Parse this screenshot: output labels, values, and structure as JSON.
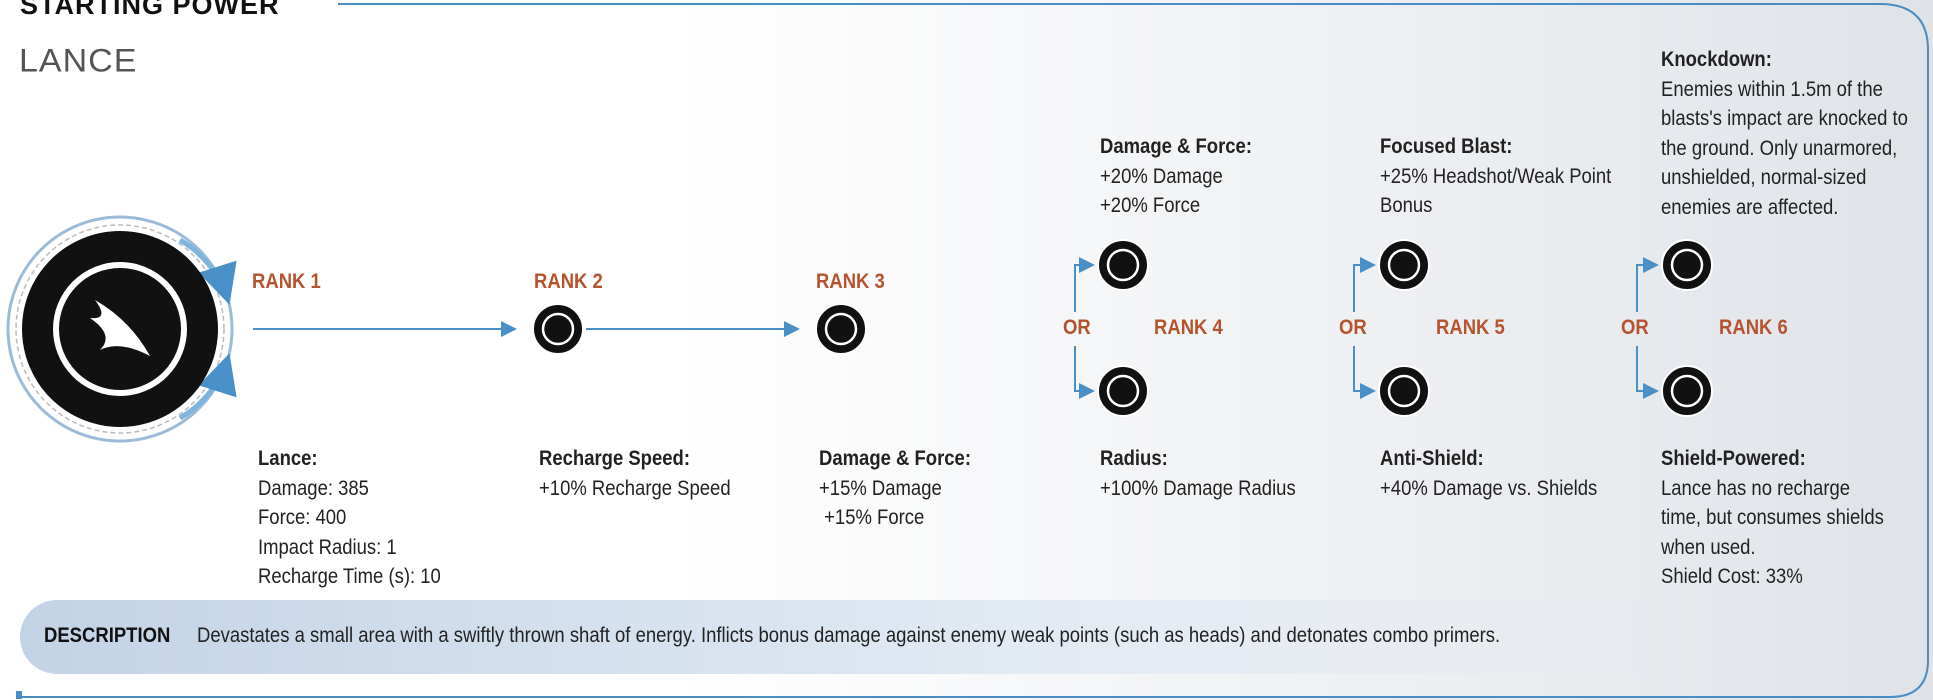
{
  "header": {
    "title": "STARTING POWER",
    "power_name": "LANCE"
  },
  "ranks": [
    "RANK 1",
    "RANK 2",
    "RANK 3",
    "RANK 4",
    "RANK 5",
    "RANK 6"
  ],
  "or_labels": [
    "OR",
    "OR",
    "OR"
  ],
  "upgrades": [
    {
      "name": "Lance:",
      "lines": [
        "Damage: 385",
        "Force: 400",
        "Impact Radius: 1",
        "Recharge Time (s): 10"
      ]
    },
    {
      "name": "Recharge Speed:",
      "lines": [
        "+10% Recharge Speed"
      ]
    },
    {
      "name": "Damage & Force:",
      "lines": [
        "+15% Damage",
        " +15% Force"
      ]
    },
    {
      "name": "Damage & Force:",
      "lines": [
        "+20% Damage",
        "+20% Force"
      ]
    },
    {
      "name": "Radius:",
      "lines": [
        "+100% Damage Radius"
      ]
    },
    {
      "name": "Focused Blast:",
      "lines": [
        "+25% Headshot/Weak Point",
        "Bonus"
      ]
    },
    {
      "name": "Anti-Shield:",
      "lines": [
        "+40% Damage vs. Shields"
      ]
    },
    {
      "name": "Knockdown:",
      "lines": [
        "Enemies within 1.5m of the",
        "blasts's impact are knocked to",
        "the ground. Only unarmored,",
        "unshielded, normal-sized",
        "enemies are affected."
      ]
    },
    {
      "name": "Shield-Powered:",
      "lines": [
        "Lance has no recharge",
        "time, but consumes shields",
        "when used.",
        "Shield Cost: 33%"
      ]
    }
  ],
  "description": {
    "label": "DESCRIPTION",
    "text": "Devastates a small area with a swiftly thrown shaft of energy. Inflicts bonus damage against enemy weak points (such as heads) and detonates combo primers."
  }
}
